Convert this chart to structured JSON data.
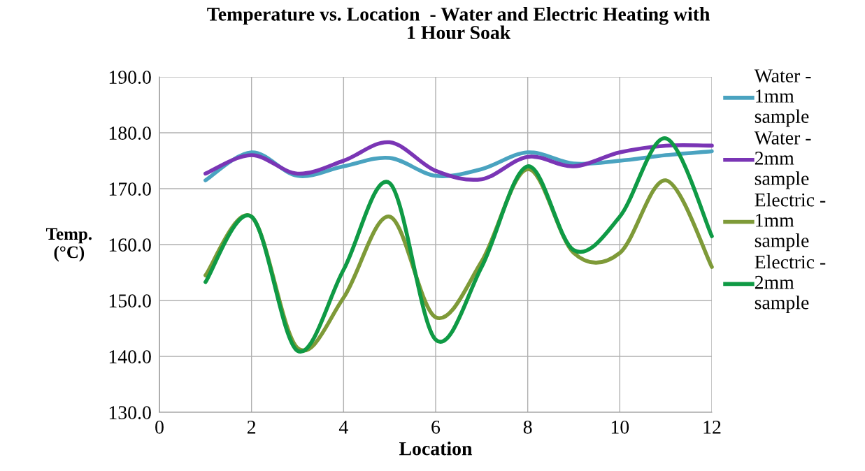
{
  "chart_data": {
    "type": "line",
    "title": "Temperature vs. Location  - Water and Electric Heating with\n1 Hour Soak",
    "xlabel": "Location",
    "ylabel": "Temp.\n(°C)",
    "x": [
      1,
      2,
      3,
      4,
      5,
      6,
      7,
      8,
      9,
      10,
      11,
      12
    ],
    "series": [
      {
        "name": "Water -\n1mm\nsample",
        "color": "#4aa3c0",
        "values": [
          171.5,
          176.5,
          172.3,
          174,
          175.5,
          172.3,
          173.5,
          176.5,
          174.5,
          175,
          176,
          176.7
        ]
      },
      {
        "name": "Water -\n2mm\nsample",
        "color": "#7a35b5",
        "values": [
          172.7,
          176,
          172.7,
          175,
          178.3,
          173.2,
          171.7,
          175.7,
          174,
          176.5,
          177.7,
          177.7
        ]
      },
      {
        "name": "Electric -\n1mm\nsample",
        "color": "#7e9a38",
        "values": [
          154.5,
          165,
          141.5,
          150.5,
          165,
          147,
          157,
          173.5,
          158.5,
          158.5,
          171.5,
          156
        ]
      },
      {
        "name": "Electric -\n2mm\nsample",
        "color": "#0f9a45",
        "values": [
          153.3,
          165,
          141,
          155.5,
          171,
          143,
          156,
          174,
          159,
          165,
          179,
          161.5
        ]
      }
    ],
    "xlim": [
      0,
      12
    ],
    "xticks": [
      0,
      2,
      4,
      6,
      8,
      10,
      12
    ],
    "ylim": [
      130,
      190
    ],
    "yticks": [
      {
        "value": 130,
        "label": "130.0"
      },
      {
        "value": 140,
        "label": "140.0"
      },
      {
        "value": 150,
        "label": "150.0"
      },
      {
        "value": 160,
        "label": "160.0"
      },
      {
        "value": 170,
        "label": "170.0"
      },
      {
        "value": 180,
        "label": "180.0"
      },
      {
        "value": 190,
        "label": "190.0"
      }
    ],
    "grid": true,
    "legend": "right",
    "marker": "none",
    "line_style": "solid"
  }
}
